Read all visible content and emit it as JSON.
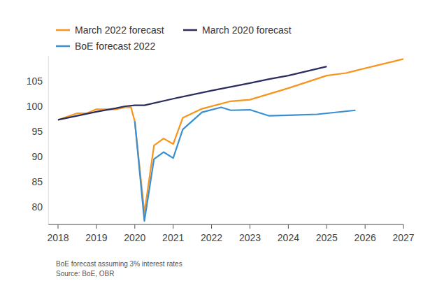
{
  "chart_data": {
    "type": "line",
    "legend": "top-left",
    "grid": false,
    "xlim": [
      2017.75,
      2027
    ],
    "xticks": [
      2018,
      2019,
      2020,
      2021,
      2022,
      2023,
      2024,
      2025,
      2026,
      2027
    ],
    "ylim": [
      76.5,
      110
    ],
    "yticks": [
      80,
      85,
      90,
      95,
      100,
      105
    ],
    "annotations": [
      "BoE forecast assuming 3% interest rates",
      "Source: BoE, OBR"
    ],
    "series": [
      {
        "name": "March 2022 forecast",
        "color": "#f7941d",
        "x": [
          2018,
          2018.5,
          2018.75,
          2019,
          2019.25,
          2019.5,
          2019.75,
          2019.9,
          2020,
          2020.25,
          2020.5,
          2020.75,
          2021,
          2021.25,
          2021.75,
          2022.5,
          2023,
          2024,
          2025,
          2025.5,
          2027
        ],
        "values": [
          97.3,
          98.6,
          98.6,
          99.4,
          99.4,
          99.4,
          99.8,
          99.8,
          97.0,
          78.8,
          92.2,
          93.6,
          92.5,
          97.7,
          99.5,
          101.0,
          101.3,
          103.6,
          106.1,
          106.6,
          109.4
        ]
      },
      {
        "name": "March 2020 forecast",
        "color": "#2b2d5e",
        "x": [
          2018,
          2018.5,
          2019,
          2019.5,
          2019.75,
          2020,
          2020.25,
          2021,
          2022,
          2023,
          2023.5,
          2024,
          2025
        ],
        "values": [
          97.3,
          98.1,
          98.9,
          99.6,
          100.0,
          100.2,
          100.2,
          101.5,
          103.1,
          104.6,
          105.4,
          106.1,
          107.9
        ]
      },
      {
        "name": "BoE forecast 2022",
        "color": "#3a8fd0",
        "x": [
          2020,
          2020.25,
          2020.5,
          2020.75,
          2021,
          2021.25,
          2021.75,
          2022.25,
          2022.5,
          2023,
          2023.5,
          2024,
          2024.75,
          2025.75
        ],
        "values": [
          97.0,
          77.2,
          89.5,
          90.9,
          89.7,
          95.4,
          98.8,
          99.8,
          99.2,
          99.3,
          98.1,
          98.2,
          98.4,
          99.2
        ]
      }
    ]
  }
}
